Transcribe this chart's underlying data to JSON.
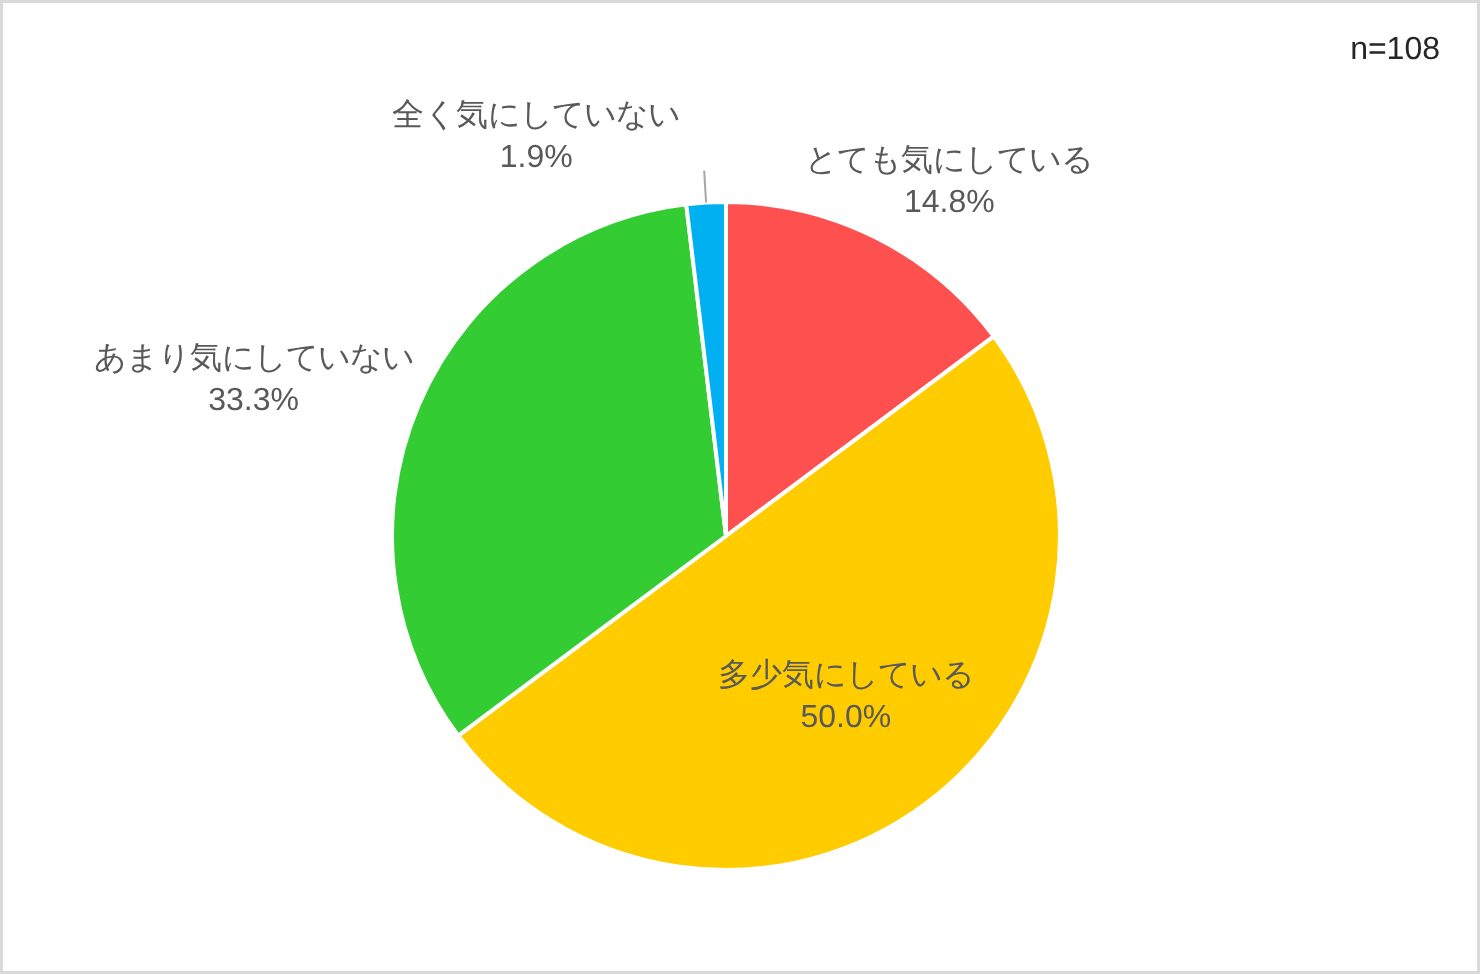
{
  "chart_data": {
    "type": "pie",
    "categories": [
      "とても気にしている",
      "多少気にしている",
      "あまり気にしていない",
      "全く気にしていない"
    ],
    "values": [
      14.8,
      50.0,
      33.3,
      1.9
    ],
    "colors": [
      "#ff5050",
      "#ffcc00",
      "#33cc33",
      "#00b0f0"
    ],
    "value_labels": [
      "14.8%",
      "50.0%",
      "33.3%",
      "1.9%"
    ],
    "annotations": [
      "n=108"
    ]
  }
}
